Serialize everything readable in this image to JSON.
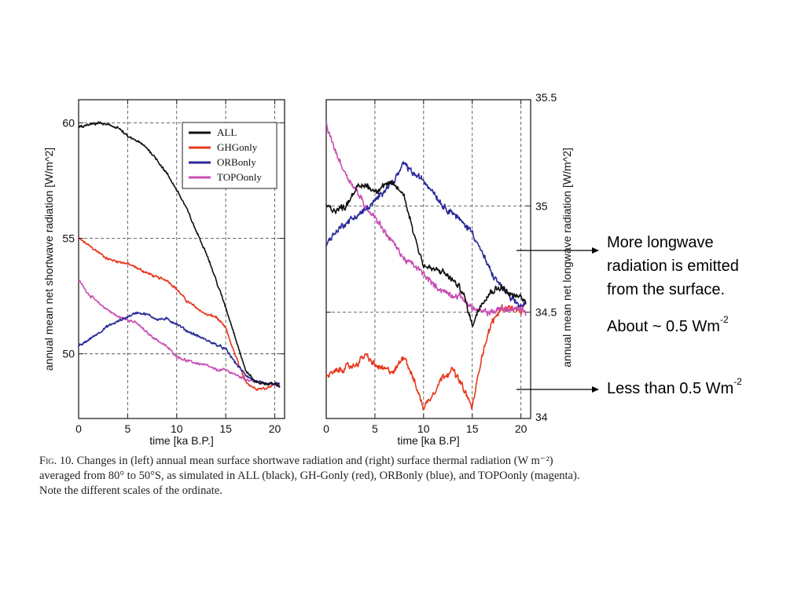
{
  "annotations": {
    "upper_note": [
      "More longwave",
      "radiation is emitted",
      "from the surface."
    ],
    "about_text": "About ~ 0.5 Wm",
    "about_exp": "-2",
    "lower_note": "Less than 0.5 Wm",
    "lower_exp": "-2"
  },
  "caption": {
    "fig_label": "Fig. 10.",
    "text": " Changes in (left) annual mean surface shortwave radiation and (right) surface thermal radiation (W m⁻²) averaged from 80° to 50°S, as simulated in ALL (black), GH-Gonly (red), ORBonly (blue), and TOPOonly (magenta). Note the different scales of the ordinate."
  },
  "colors": {
    "ALL": "#111111",
    "GHGonly": "#e8381c",
    "ORBonly": "#2a2a9a",
    "TOPOonly": "#c94fb4"
  },
  "chart_data": [
    {
      "type": "line",
      "xlabel": "time [ka B.P.]",
      "ylabel": "annual mean net shortwave radiation [W/m^2]",
      "xlim": [
        0,
        21
      ],
      "ylim": [
        47.2,
        61
      ],
      "xticks": [
        0,
        5,
        10,
        15,
        20
      ],
      "yticks": [
        50,
        55,
        60
      ],
      "grid": true,
      "legend": "top-right",
      "x": [
        0,
        1,
        2,
        3,
        4,
        5,
        6,
        7,
        8,
        9,
        10,
        11,
        12,
        13,
        14,
        15,
        16,
        17,
        18,
        19,
        20,
        20.5
      ],
      "series": [
        {
          "name": "ALL",
          "color": "#111111",
          "values": [
            59.8,
            59.9,
            60.0,
            59.9,
            59.8,
            59.4,
            59.2,
            58.9,
            58.4,
            57.8,
            57.1,
            56.3,
            55.3,
            54.4,
            53.2,
            52.0,
            50.7,
            49.3,
            48.8,
            48.7,
            48.7,
            48.6
          ]
        },
        {
          "name": "GHGonly",
          "color": "#e8381c",
          "values": [
            55.0,
            54.7,
            54.4,
            54.1,
            54.0,
            53.9,
            53.7,
            53.5,
            53.3,
            53.2,
            52.8,
            52.3,
            52.0,
            51.7,
            51.6,
            51.1,
            49.9,
            48.8,
            48.5,
            48.5,
            48.7,
            48.6
          ]
        },
        {
          "name": "ORBonly",
          "color": "#2a2a9a",
          "values": [
            50.3,
            50.6,
            50.9,
            51.2,
            51.4,
            51.6,
            51.8,
            51.7,
            51.5,
            51.5,
            51.3,
            51.0,
            50.8,
            50.6,
            50.4,
            50.2,
            49.6,
            49.1,
            48.8,
            48.7,
            48.7,
            48.7
          ]
        },
        {
          "name": "TOPOonly",
          "color": "#c94fb4",
          "values": [
            53.2,
            52.6,
            52.2,
            51.9,
            51.6,
            51.5,
            51.3,
            50.9,
            50.6,
            50.3,
            49.9,
            49.7,
            49.6,
            49.5,
            49.3,
            49.3,
            49.1,
            48.9,
            48.8,
            48.7,
            48.7,
            48.6
          ]
        }
      ]
    },
    {
      "type": "line",
      "xlabel": "time [ka B.P]",
      "ylabel": "annual mean net longwave radiation [W/m^2]",
      "xlim": [
        0,
        21
      ],
      "ylim": [
        34,
        35.5
      ],
      "xticks": [
        0,
        5,
        10,
        15,
        20
      ],
      "yticks": [
        34,
        34.5,
        35,
        35.5
      ],
      "grid": true,
      "x": [
        0,
        1,
        2,
        3,
        4,
        5,
        6,
        7,
        8,
        9,
        10,
        11,
        12,
        13,
        14,
        15,
        16,
        17,
        18,
        19,
        20,
        20.5
      ],
      "series": [
        {
          "name": "ALL",
          "color": "#111111",
          "values": [
            35.0,
            34.98,
            35.0,
            35.08,
            35.1,
            35.07,
            35.1,
            35.1,
            35.05,
            34.87,
            34.72,
            34.7,
            34.69,
            34.65,
            34.6,
            34.44,
            34.55,
            34.6,
            34.62,
            34.58,
            34.57,
            34.55
          ]
        },
        {
          "name": "GHGonly",
          "color": "#e8381c",
          "values": [
            34.2,
            34.22,
            34.24,
            34.25,
            34.3,
            34.25,
            34.23,
            34.22,
            34.3,
            34.18,
            34.05,
            34.12,
            34.2,
            34.23,
            34.15,
            34.05,
            34.3,
            34.45,
            34.52,
            34.52,
            34.5,
            34.55
          ]
        },
        {
          "name": "ORBonly",
          "color": "#2a2a9a",
          "values": [
            34.82,
            34.88,
            34.92,
            34.95,
            34.98,
            35.02,
            35.08,
            35.12,
            35.2,
            35.15,
            35.12,
            35.07,
            35.0,
            34.97,
            34.92,
            34.88,
            34.78,
            34.68,
            34.62,
            34.56,
            34.53,
            34.54
          ]
        },
        {
          "name": "TOPOonly",
          "color": "#c94fb4",
          "values": [
            35.38,
            35.25,
            35.15,
            35.08,
            35.0,
            34.95,
            34.88,
            34.82,
            34.75,
            34.72,
            34.68,
            34.63,
            34.6,
            34.58,
            34.57,
            34.52,
            34.5,
            34.5,
            34.52,
            34.51,
            34.52,
            34.5
          ]
        }
      ]
    }
  ]
}
